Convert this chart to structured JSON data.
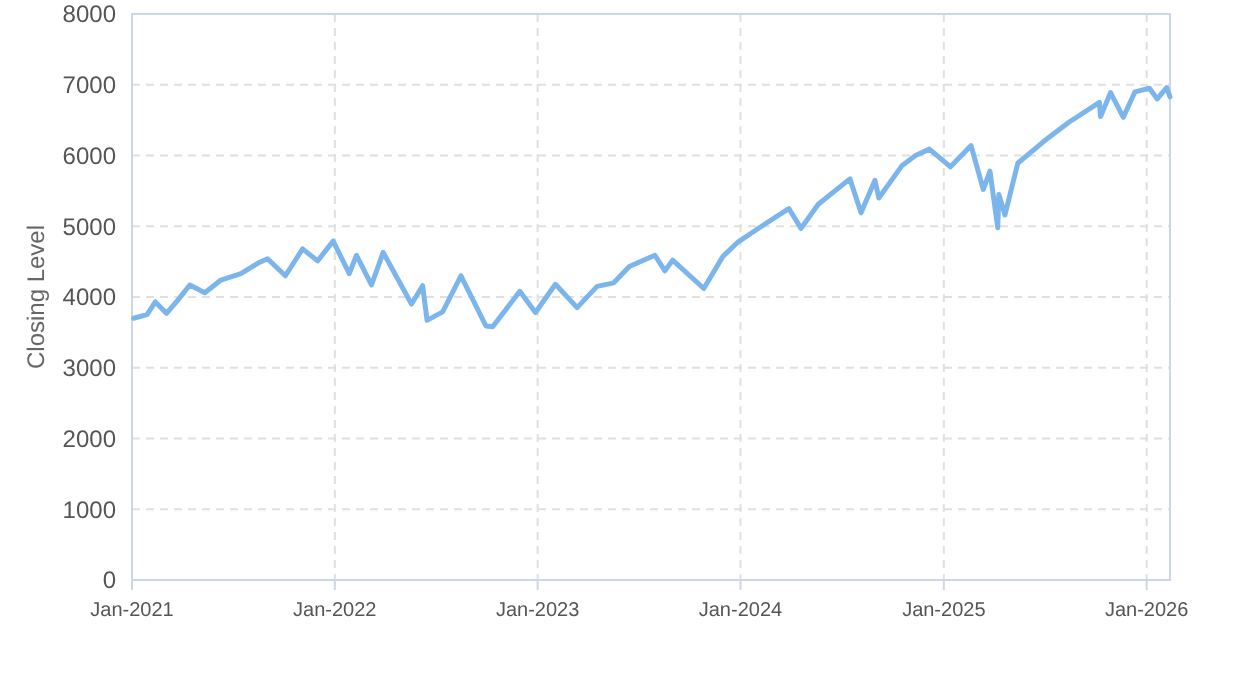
{
  "chart_data": {
    "type": "line",
    "ylabel": "Closing Level",
    "xlim": [
      "2021-01-01",
      "2026-02-12"
    ],
    "ylim": [
      0,
      8000
    ],
    "yticks": [
      0,
      1000,
      2000,
      3000,
      4000,
      5000,
      6000,
      7000,
      8000
    ],
    "xticks": [
      {
        "value": "2021-01-01",
        "label": "Jan-2021"
      },
      {
        "value": "2022-01-01",
        "label": "Jan-2022"
      },
      {
        "value": "2023-01-01",
        "label": "Jan-2023"
      },
      {
        "value": "2024-01-01",
        "label": "Jan-2024"
      },
      {
        "value": "2025-01-01",
        "label": "Jan-2025"
      },
      {
        "value": "2026-01-01",
        "label": "Jan-2026"
      }
    ],
    "grid": true,
    "marker": "none",
    "line_style": "solid",
    "series": [
      {
        "color": "#7cb5ec",
        "x": [
          "2021-01-04",
          "2021-01-28",
          "2021-02-12",
          "2021-03-04",
          "2021-03-26",
          "2021-04-15",
          "2021-05-12",
          "2021-06-10",
          "2021-07-16",
          "2021-08-16",
          "2021-09-02",
          "2021-10-04",
          "2021-11-04",
          "2021-12-01",
          "2021-12-29",
          "2022-01-27",
          "2022-02-09",
          "2022-03-08",
          "2022-03-29",
          "2022-05-19",
          "2022-06-08",
          "2022-06-16",
          "2022-07-14",
          "2022-08-16",
          "2022-09-30",
          "2022-10-12",
          "2022-11-30",
          "2022-12-28",
          "2023-02-02",
          "2023-03-13",
          "2023-04-18",
          "2023-05-18",
          "2023-06-15",
          "2023-07-31",
          "2023-08-18",
          "2023-09-01",
          "2023-10-27",
          "2023-11-30",
          "2023-12-28",
          "2024-02-08",
          "2024-03-28",
          "2024-04-19",
          "2024-05-20",
          "2024-07-16",
          "2024-08-05",
          "2024-08-30",
          "2024-09-06",
          "2024-10-18",
          "2024-11-11",
          "2024-12-06",
          "2025-01-13",
          "2025-02-19",
          "2025-03-13",
          "2025-03-25",
          "2025-04-08",
          "2025-04-10",
          "2025-04-21",
          "2025-05-14",
          "2025-06-30",
          "2025-08-14",
          "2025-10-08",
          "2025-10-10",
          "2025-10-28",
          "2025-11-20",
          "2025-12-11",
          "2026-01-06",
          "2026-01-20",
          "2026-02-06",
          "2026-02-12"
        ],
        "values": [
          3700,
          3750,
          3930,
          3770,
          3970,
          4170,
          4060,
          4240,
          4330,
          4480,
          4540,
          4300,
          4680,
          4510,
          4790,
          4330,
          4590,
          4170,
          4630,
          3900,
          4160,
          3670,
          3790,
          4300,
          3590,
          3580,
          4080,
          3780,
          4180,
          3850,
          4150,
          4200,
          4430,
          4590,
          4370,
          4520,
          4120,
          4570,
          4780,
          5000,
          5250,
          4970,
          5310,
          5670,
          5190,
          5650,
          5400,
          5860,
          6000,
          6090,
          5840,
          6140,
          5520,
          5780,
          4980,
          5450,
          5160,
          5890,
          6200,
          6470,
          6750,
          6550,
          6890,
          6540,
          6900,
          6950,
          6800,
          6960,
          6830
        ]
      }
    ]
  }
}
